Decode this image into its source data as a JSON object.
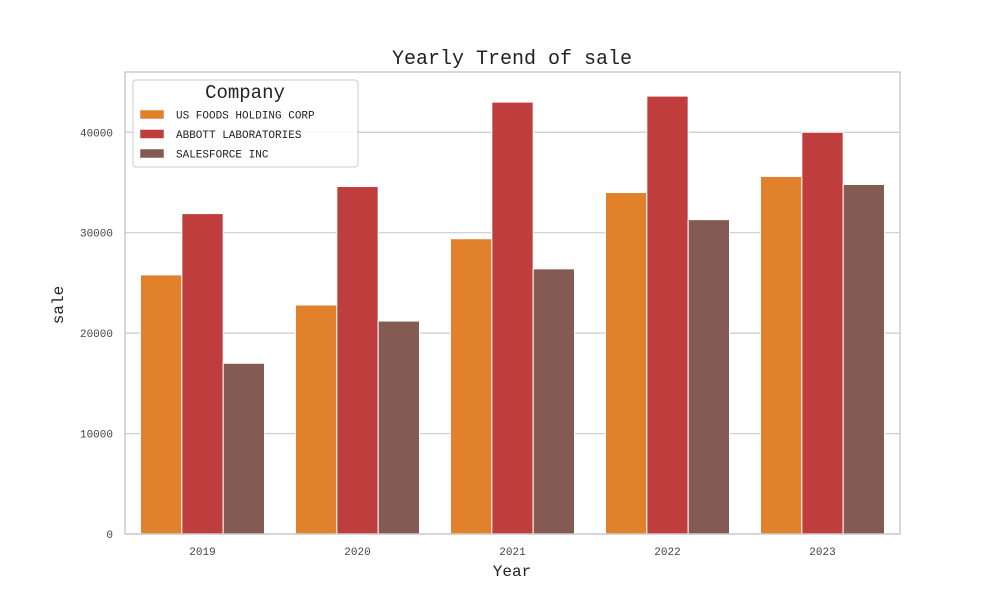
{
  "chart_data": {
    "type": "bar",
    "title": "Yearly Trend of sale",
    "xlabel": "Year",
    "ylabel": "sale",
    "categories": [
      "2019",
      "2020",
      "2021",
      "2022",
      "2023"
    ],
    "ylim": [
      0,
      46000
    ],
    "yticks": [
      0,
      10000,
      20000,
      30000,
      40000
    ],
    "ytick_labels": [
      "0",
      "10000",
      "20000",
      "30000",
      "40000"
    ],
    "grid": true,
    "legend": {
      "title": "Company",
      "placement": "top-left"
    },
    "series": [
      {
        "name": "US FOODS HOLDING CORP",
        "color": "#E1812C",
        "values": [
          25800,
          22800,
          29400,
          34000,
          35600
        ]
      },
      {
        "name": "ABBOTT LABORATORIES",
        "color": "#C03D3E",
        "values": [
          31900,
          34600,
          43000,
          43600,
          40000
        ]
      },
      {
        "name": "SALESFORCE INC",
        "color": "#845B53",
        "values": [
          17000,
          21200,
          26400,
          31300,
          34800
        ]
      }
    ]
  }
}
